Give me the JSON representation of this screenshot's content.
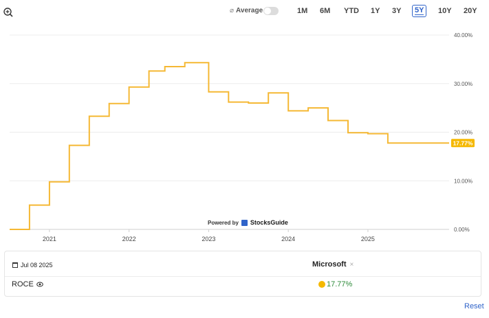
{
  "toolbar": {
    "average_symbol": "⌀",
    "average_label": "Average",
    "ranges": [
      "1M",
      "6M",
      "YTD",
      "1Y",
      "3Y",
      "5Y",
      "10Y",
      "20Y"
    ],
    "active_range": "5Y"
  },
  "chart_data": {
    "type": "line",
    "line_style": "step",
    "series": [
      {
        "color": "#f5b833",
        "points": [
          [
            2020.0,
            0.0
          ],
          [
            2020.25,
            5.0
          ],
          [
            2020.5,
            9.8
          ],
          [
            2020.75,
            17.3
          ],
          [
            2021.0,
            23.3
          ],
          [
            2021.25,
            25.9
          ],
          [
            2021.5,
            29.3
          ],
          [
            2021.75,
            32.6
          ],
          [
            2021.95,
            33.5
          ],
          [
            2022.2,
            34.3
          ],
          [
            2022.5,
            28.3
          ],
          [
            2022.75,
            26.2
          ],
          [
            2023.0,
            26.0
          ],
          [
            2023.25,
            28.1
          ],
          [
            2023.5,
            24.4
          ],
          [
            2023.75,
            25.0
          ],
          [
            2024.0,
            22.4
          ],
          [
            2024.25,
            19.9
          ],
          [
            2024.5,
            19.7
          ],
          [
            2024.75,
            17.77
          ],
          [
            2025.0,
            17.77
          ]
        ]
      }
    ],
    "x_range": [
      2020.0,
      2025.52
    ],
    "x_ticks": [
      {
        "value": 2020.5,
        "label": "2021"
      },
      {
        "value": 2021.5,
        "label": "2022"
      },
      {
        "value": 2022.5,
        "label": "2023"
      },
      {
        "value": 2023.5,
        "label": "2024"
      },
      {
        "value": 2024.5,
        "label": "2025"
      }
    ],
    "y_range": [
      0,
      40
    ],
    "y_ticks": [
      {
        "value": 0,
        "label": "0.00%"
      },
      {
        "value": 10,
        "label": "10.00%"
      },
      {
        "value": 20,
        "label": "20.00%"
      },
      {
        "value": 30,
        "label": "30.00%"
      },
      {
        "value": 40,
        "label": "40.00%"
      }
    ],
    "last_value_label": "17.77%",
    "last_value": 17.77,
    "grid": true,
    "y_axis_side": "right"
  },
  "credit": {
    "powered_by": "Powered by",
    "brand": "StocksGuide"
  },
  "info": {
    "date": "Jul 08 2025",
    "company": "Microsoft",
    "remove_symbol": "×",
    "metric": "ROCE",
    "metric_value": "17.77%",
    "value_color": "#2e8b3a",
    "dot_color": "#f5b800"
  },
  "reset_label": "Reset"
}
